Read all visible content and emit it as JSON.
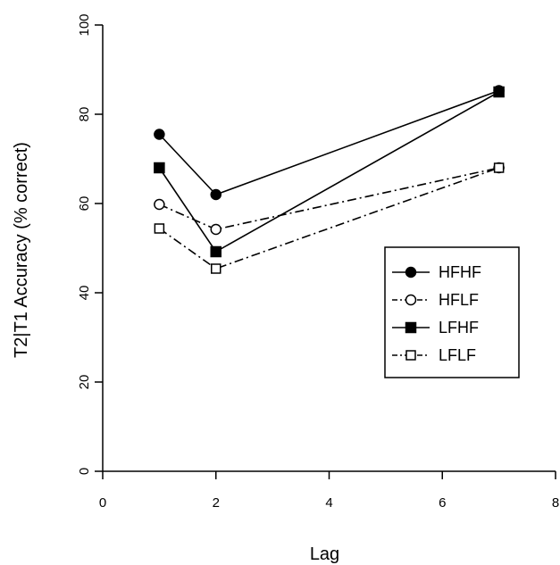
{
  "chart_data": {
    "type": "line",
    "title": "",
    "xlabel": "Lag",
    "ylabel": "T2|T1 Accuracy (% correct)",
    "xlim": [
      0,
      8
    ],
    "ylim": [
      0,
      100
    ],
    "xticks": [
      "0",
      "2",
      "4",
      "6",
      "8"
    ],
    "yticks": [
      "0",
      "20",
      "40",
      "60",
      "80",
      "100"
    ],
    "grid": false,
    "legend_position": "right",
    "series": [
      {
        "name": "HFHF",
        "marker": "filled-circle",
        "line": "solid",
        "x": [
          1,
          2,
          7
        ],
        "values": [
          75.5,
          62,
          85.3
        ]
      },
      {
        "name": "HFLF",
        "marker": "open-circle",
        "line": "dashed-dot",
        "x": [
          1,
          2,
          7
        ],
        "values": [
          59.8,
          54.2,
          68
        ]
      },
      {
        "name": "LFHF",
        "marker": "filled-square",
        "line": "solid",
        "x": [
          1,
          2,
          7
        ],
        "values": [
          68,
          49.2,
          85
        ]
      },
      {
        "name": "LFLF",
        "marker": "open-square",
        "line": "dashed-dot",
        "x": [
          1,
          2,
          7
        ],
        "values": [
          54.4,
          45.4,
          68
        ]
      }
    ]
  }
}
